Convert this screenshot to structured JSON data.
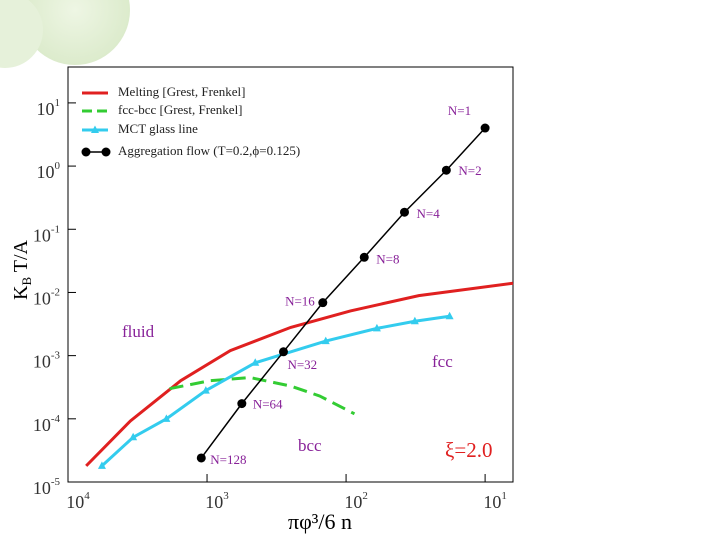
{
  "chart_data": {
    "type": "line",
    "xlabel": "πφ³/6 n",
    "ylabel": "K",
    "ylabel_sub": "B",
    "ylabel_rest": " T/A",
    "xscale": "log",
    "yscale": "log",
    "xlim": [
      10000,
      6.3
    ],
    "ylim": [
      1e-05,
      37
    ],
    "xticks": [
      {
        "value": 10000,
        "label": "10",
        "exponent": "4"
      },
      {
        "value": 1000,
        "label": "10",
        "exponent": "3"
      },
      {
        "value": 100,
        "label": "10",
        "exponent": "2"
      },
      {
        "value": 10,
        "label": "10",
        "exponent": "1"
      }
    ],
    "yticks": [
      {
        "value": 1e-05,
        "label": "10",
        "exponent": "-5"
      },
      {
        "value": 0.0001,
        "label": "10",
        "exponent": "-4"
      },
      {
        "value": 0.001,
        "label": "10",
        "exponent": "-3"
      },
      {
        "value": 0.01,
        "label": "10",
        "exponent": "-2"
      },
      {
        "value": 0.1,
        "label": "10",
        "exponent": "-1"
      },
      {
        "value": 1,
        "label": "10",
        "exponent": "0"
      },
      {
        "value": 10,
        "label": "10",
        "exponent": "1"
      }
    ],
    "series": [
      {
        "name": "Melting  [Grest, Frenkel]",
        "color": "#e02020",
        "style": "solid",
        "x": [
          7400,
          3550,
          1550,
          680,
          250,
          93,
          30,
          6.3
        ],
        "values": [
          1.8e-05,
          9.3e-05,
          0.0004,
          0.0012,
          0.0028,
          0.0051,
          0.0089,
          0.014
        ]
      },
      {
        "name": "fcc-bcc  [Grest, Frenkel]",
        "color": "#33cc33",
        "style": "dashed",
        "x": [
          1860,
          960,
          490,
          250,
          155,
          87
        ],
        "values": [
          0.0003,
          0.0004,
          0.00045,
          0.00033,
          0.00023,
          0.00012
        ]
      },
      {
        "name": "MCT glass line",
        "color": "#33ccee",
        "style": "solid",
        "marker": "triangle",
        "x": [
          5700,
          3400,
          1960,
          1020,
          450,
          140,
          60,
          32,
          18
        ],
        "values": [
          1.8e-05,
          5.1e-05,
          0.0001,
          0.00028,
          0.00077,
          0.0017,
          0.0027,
          0.0035,
          0.0042
        ]
      },
      {
        "name": "Aggregation flow (T=0.2,ϕ=0.125)",
        "color": "#000000",
        "style": "solid",
        "marker": "circle",
        "x": [
          10,
          19,
          38,
          74,
          147,
          282,
          562,
          1100
        ],
        "values": [
          4.0,
          0.86,
          0.186,
          0.036,
          0.0069,
          0.00115,
          0.000174,
          2.4e-05
        ],
        "labels": [
          "N=1",
          "N=2",
          "N=4",
          "N=8",
          "N=16",
          "N=32",
          "N=64",
          "N=128"
        ]
      }
    ],
    "annotations": [
      {
        "text": "fluid",
        "color": "#882299"
      },
      {
        "text": "fcc",
        "color": "#882299"
      },
      {
        "text": "bcc",
        "color": "#882299"
      },
      {
        "text": "ξ=2.0",
        "color": "#e02020"
      }
    ]
  }
}
